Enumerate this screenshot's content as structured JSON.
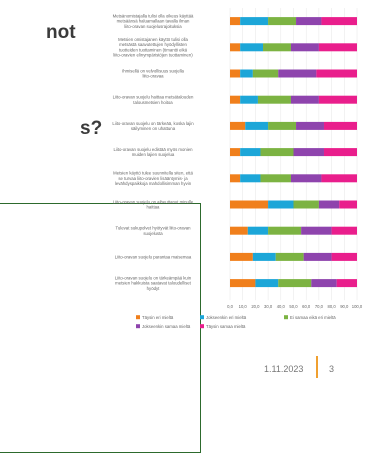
{
  "slide": {
    "heading_fragment_1": "not",
    "heading_fragment_2": "s?",
    "date": "1.11.2023",
    "page": "3"
  },
  "chart_data": {
    "type": "bar",
    "orientation": "horizontal",
    "stacked": true,
    "percent": true,
    "categories": [
      "Metsänomistajalla tulisi olla oikeus käyttää metsäänsä haluamallaan tavalla ilman liito-oravan suojelusrajoituksia",
      "Metsien omistajanen käyttö tulisi olla metsästä saavutettujen hyödyllisten tuotteiden tuottaminen (timantti eikä liito-oravien elinympäristöjen tuottaminen)",
      "Ihmisellä on velvollisuus suojella liito-oravaa",
      "Liito-oravan suojelu haittaa metsätalouden talousmetsien hoitoa",
      "Liito-oravan suojelu on tärkeää, koska lajin säilyminen on uhattuna",
      "Liito-oravan suojelu edistää myös monien muiden lajien suojelua",
      "Metsien käyttö tulee suunnitella siten, että se turvaa liito-oravien lisääntymis- ja levähdyspaikkoja mahdollisimman hyvin",
      "Liito-oravan suojelu on aiheuttanut minulle haittaa",
      "Tulevat sukupolvet hyötyvät liito-oravan suojelusta",
      "Liito-oravan suojelu parantaa maisemaa",
      "Liito-oravan suojelu on tärkeämpää kuin metsien hakkuista saatavat taloudelliset hyödyt"
    ],
    "series": [
      {
        "name": "Täysin eri mieltä",
        "color": "#f07f1c",
        "values": [
          8,
          8,
          8,
          8,
          12,
          8,
          8,
          30,
          14,
          18,
          20
        ]
      },
      {
        "name": "Jokseenkin eri mieltä",
        "color": "#1ca6d8",
        "values": [
          22,
          18,
          10,
          14,
          18,
          16,
          16,
          20,
          16,
          18,
          18
        ]
      },
      {
        "name": "Ei samaa eikä eri mieltä",
        "color": "#7cb342",
        "values": [
          22,
          22,
          20,
          26,
          22,
          26,
          24,
          20,
          26,
          22,
          26
        ]
      },
      {
        "name": "Jokseenkin samaa mieltä",
        "color": "#8e44ad",
        "values": [
          20,
          22,
          30,
          22,
          22,
          24,
          24,
          16,
          24,
          22,
          20
        ]
      },
      {
        "name": "Täysin samaa mieltä",
        "color": "#e91e8c",
        "values": [
          28,
          30,
          32,
          30,
          26,
          26,
          28,
          14,
          20,
          20,
          16
        ]
      }
    ],
    "xlim": [
      0,
      100
    ],
    "x_ticks": [
      "0,0",
      "10,0",
      "20,0",
      "30,0",
      "40,0",
      "50,0",
      "60,0",
      "70,0",
      "80,0",
      "90,0",
      "100,0"
    ],
    "legend_position": "bottom"
  }
}
